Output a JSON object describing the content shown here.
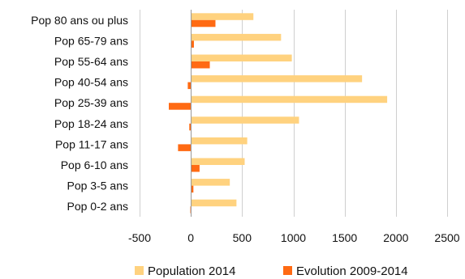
{
  "chart_data": {
    "type": "bar",
    "orientation": "horizontal",
    "categories": [
      "Pop 80 ans ou plus",
      "Pop 65-79 ans",
      "Pop 55-64 ans",
      "Pop 40-54 ans",
      "Pop 25-39 ans",
      "Pop 18-24 ans",
      "Pop 11-17 ans",
      "Pop 6-10 ans",
      "Pop 3-5 ans",
      "Pop 0-2 ans"
    ],
    "series": [
      {
        "name": "Population 2014",
        "color": "#FFD27F",
        "values": [
          610,
          880,
          985,
          1670,
          1915,
          1055,
          550,
          525,
          380,
          445
        ]
      },
      {
        "name": "Evolution 2009-2014",
        "color": "#FF6A13",
        "values": [
          240,
          30,
          185,
          -30,
          -215,
          -15,
          -125,
          85,
          25,
          -5
        ]
      }
    ],
    "xlim": [
      -500,
      2500
    ],
    "xticks": [
      "-500",
      "0",
      "500",
      "1000",
      "1500",
      "2000",
      "2500"
    ],
    "grid": true,
    "legend": "bottom"
  }
}
